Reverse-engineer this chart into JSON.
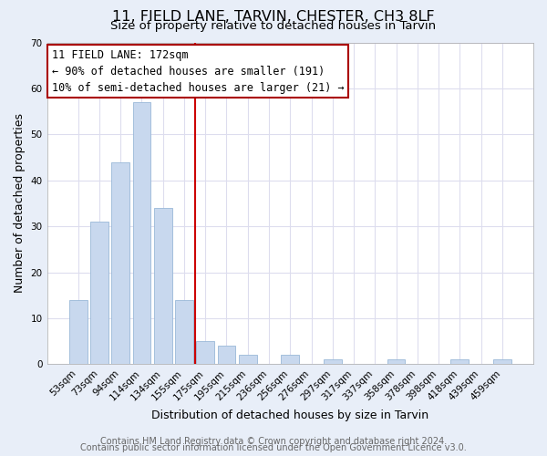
{
  "title": "11, FIELD LANE, TARVIN, CHESTER, CH3 8LF",
  "subtitle": "Size of property relative to detached houses in Tarvin",
  "xlabel": "Distribution of detached houses by size in Tarvin",
  "ylabel": "Number of detached properties",
  "bar_labels": [
    "53sqm",
    "73sqm",
    "94sqm",
    "114sqm",
    "134sqm",
    "155sqm",
    "175sqm",
    "195sqm",
    "215sqm",
    "236sqm",
    "256sqm",
    "276sqm",
    "297sqm",
    "317sqm",
    "337sqm",
    "358sqm",
    "378sqm",
    "398sqm",
    "418sqm",
    "439sqm",
    "459sqm"
  ],
  "bar_values": [
    14,
    31,
    44,
    57,
    34,
    14,
    5,
    4,
    2,
    0,
    2,
    0,
    1,
    0,
    0,
    1,
    0,
    0,
    1,
    0,
    1
  ],
  "bar_color": "#c8d8ee",
  "bar_edgecolor": "#99b8d8",
  "vline_x": 6.0,
  "vline_color": "#cc0000",
  "ylim": [
    0,
    70
  ],
  "yticks": [
    0,
    10,
    20,
    30,
    40,
    50,
    60,
    70
  ],
  "annotation_title": "11 FIELD LANE: 172sqm",
  "annotation_line1": "← 90% of detached houses are smaller (191)",
  "annotation_line2": "10% of semi-detached houses are larger (21) →",
  "annotation_box_edgecolor": "#aa0000",
  "footer1": "Contains HM Land Registry data © Crown copyright and database right 2024.",
  "footer2": "Contains public sector information licensed under the Open Government Licence v3.0.",
  "figure_background": "#e8eef8",
  "plot_background": "#ffffff",
  "grid_color": "#ddddee",
  "title_fontsize": 11.5,
  "subtitle_fontsize": 9.5,
  "axis_label_fontsize": 9,
  "tick_fontsize": 7.5,
  "footer_fontsize": 7,
  "annotation_fontsize": 8.5
}
